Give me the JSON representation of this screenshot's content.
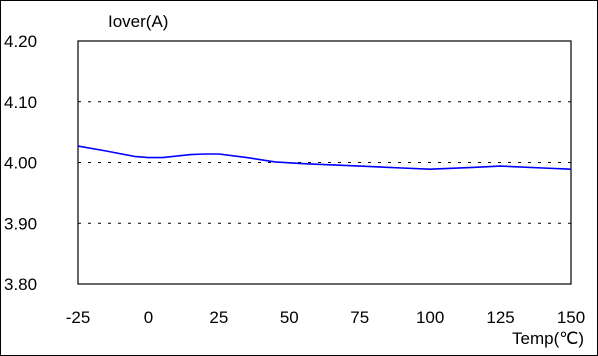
{
  "chart_data": {
    "type": "line",
    "ylabel": "Iover(A)",
    "xlabel": "Temp(℃)",
    "xlim": [
      -25,
      150
    ],
    "ylim": [
      3.8,
      4.2
    ],
    "xticks": [
      -25,
      0,
      25,
      50,
      75,
      100,
      125,
      150
    ],
    "xtick_labels": [
      "-25",
      "0",
      "25",
      "50",
      "75",
      "100",
      "125",
      "150"
    ],
    "yticks": [
      3.8,
      3.9,
      4.0,
      4.1,
      4.2
    ],
    "ytick_labels": [
      "3.80",
      "3.90",
      "4.00",
      "4.10",
      "4.20"
    ],
    "grid": "horizontal dashed",
    "series": [
      {
        "color": "#0000ff",
        "x": [
          -25,
          -15,
          -5,
          0,
          5,
          15,
          20,
          25,
          35,
          45,
          55,
          75,
          90,
          100,
          115,
          125,
          140,
          150
        ],
        "y": [
          4.027,
          4.019,
          4.01,
          4.008,
          4.008,
          4.013,
          4.014,
          4.014,
          4.008,
          4.001,
          3.998,
          3.994,
          3.991,
          3.989,
          3.992,
          3.994,
          3.991,
          3.989
        ]
      }
    ]
  }
}
